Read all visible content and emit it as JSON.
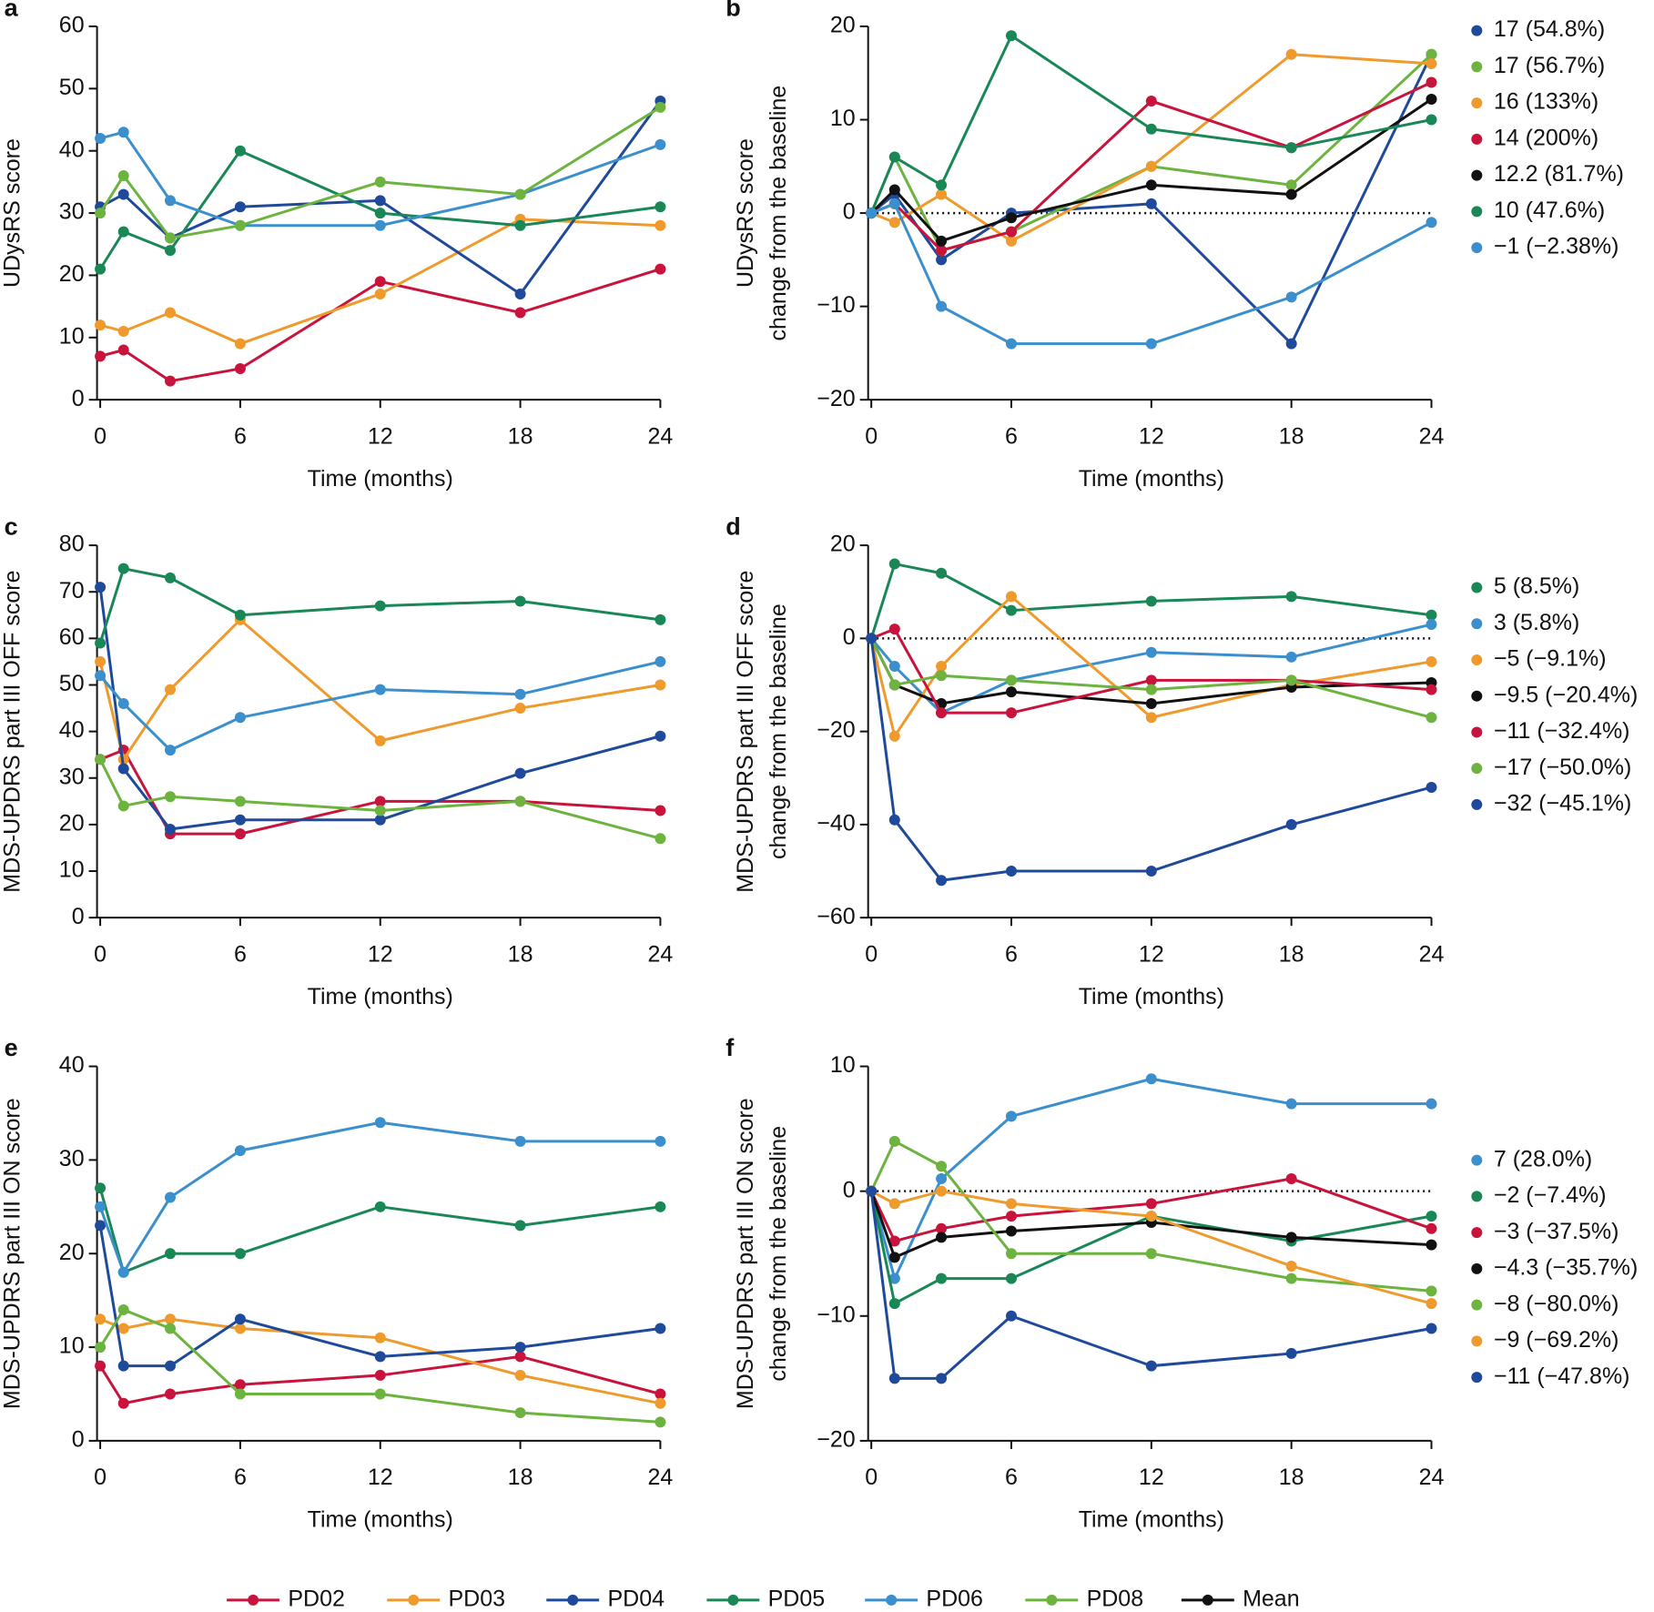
{
  "legend": [
    {
      "name": "PD02",
      "color": "#c8143c"
    },
    {
      "name": "PD03",
      "color": "#ef9a2d"
    },
    {
      "name": "PD04",
      "color": "#1f4a9b"
    },
    {
      "name": "PD05",
      "color": "#1a8757"
    },
    {
      "name": "PD06",
      "color": "#3b8fcc"
    },
    {
      "name": "PD08",
      "color": "#6db33f"
    },
    {
      "name": "Mean",
      "color": "#111111"
    }
  ],
  "chart_data": [
    {
      "type": "line",
      "panel": "a",
      "ylabel": [
        "UDysRS score"
      ],
      "xlabel": "Time (months)",
      "x": [
        0,
        1,
        3,
        6,
        12,
        18,
        24
      ],
      "xlim": [
        0,
        24
      ],
      "xticks": [
        0,
        6,
        12,
        18,
        24
      ],
      "ylim": [
        0,
        60
      ],
      "yticks": [
        0,
        10,
        20,
        30,
        40,
        50,
        60
      ],
      "series": [
        {
          "color": "#c8143c",
          "values": [
            7,
            8,
            3,
            5,
            19,
            14,
            21
          ]
        },
        {
          "color": "#ef9a2d",
          "values": [
            12,
            11,
            14,
            9,
            17,
            29,
            28
          ]
        },
        {
          "color": "#1f4a9b",
          "values": [
            31,
            33,
            26,
            31,
            32,
            17,
            48
          ]
        },
        {
          "color": "#1a8757",
          "values": [
            21,
            27,
            24,
            40,
            30,
            28,
            31
          ]
        },
        {
          "color": "#3b8fcc",
          "values": [
            42,
            43,
            32,
            28,
            28,
            33,
            41
          ]
        },
        {
          "color": "#6db33f",
          "values": [
            30,
            36,
            26,
            28,
            35,
            33,
            47
          ]
        }
      ]
    },
    {
      "type": "line",
      "panel": "b",
      "ylabel": [
        "UDysRS score",
        "change from the baseline"
      ],
      "xlabel": "Time (months)",
      "x": [
        0,
        1,
        3,
        6,
        12,
        18,
        24
      ],
      "xlim": [
        0,
        24
      ],
      "xticks": [
        0,
        6,
        12,
        18,
        24
      ],
      "ylim": [
        -20,
        20
      ],
      "yticks": [
        {
          "value": -20,
          "label": "−20"
        },
        {
          "value": -10,
          "label": "−10"
        },
        0,
        10,
        20
      ],
      "zero_line": 0,
      "series": [
        {
          "label": "17 (54.8%)",
          "color": "#1f4a9b",
          "values": [
            0,
            2,
            -5,
            0,
            1,
            -14,
            17
          ]
        },
        {
          "label": "17 (56.7%)",
          "color": "#6db33f",
          "values": [
            0,
            6,
            -4,
            -2,
            5,
            3,
            17
          ]
        },
        {
          "label": "16 (133%)",
          "color": "#ef9a2d",
          "values": [
            0,
            -1,
            2,
            -3,
            5,
            17,
            16
          ]
        },
        {
          "label": "14 (200%)",
          "color": "#c8143c",
          "values": [
            0,
            1,
            -4,
            -2,
            12,
            7,
            14
          ]
        },
        {
          "label": "12.2 (81.7%)",
          "color": "#111111",
          "values": [
            0,
            2.5,
            -3,
            -0.5,
            3,
            2,
            12.2
          ]
        },
        {
          "label": "10 (47.6%)",
          "color": "#1a8757",
          "values": [
            0,
            6,
            3,
            19,
            9,
            7,
            10
          ]
        },
        {
          "label": "−1 (−2.38%)",
          "color": "#3b8fcc",
          "values": [
            0,
            1,
            -10,
            -14,
            -14,
            -9,
            -1
          ]
        }
      ]
    },
    {
      "type": "line",
      "panel": "c",
      "ylabel": [
        "MDS-UPDRS part III OFF score"
      ],
      "xlabel": "Time (months)",
      "x": [
        0,
        1,
        3,
        6,
        12,
        18,
        24
      ],
      "xlim": [
        0,
        24
      ],
      "xticks": [
        0,
        6,
        12,
        18,
        24
      ],
      "ylim": [
        0,
        80
      ],
      "yticks": [
        0,
        10,
        20,
        30,
        40,
        50,
        60,
        70,
        80
      ],
      "series": [
        {
          "color": "#c8143c",
          "values": [
            34,
            36,
            18,
            18,
            25,
            25,
            23
          ]
        },
        {
          "color": "#ef9a2d",
          "values": [
            55,
            34,
            49,
            64,
            38,
            45,
            50
          ]
        },
        {
          "color": "#1f4a9b",
          "values": [
            71,
            32,
            19,
            21,
            21,
            31,
            39
          ]
        },
        {
          "color": "#1a8757",
          "values": [
            59,
            75,
            73,
            65,
            67,
            68,
            64
          ]
        },
        {
          "color": "#3b8fcc",
          "values": [
            52,
            46,
            36,
            43,
            49,
            48,
            55
          ]
        },
        {
          "color": "#6db33f",
          "values": [
            34,
            24,
            26,
            25,
            23,
            25,
            17
          ]
        }
      ]
    },
    {
      "type": "line",
      "panel": "d",
      "ylabel": [
        "MDS-UPDRS part III OFF score",
        "change from the baseline"
      ],
      "xlabel": "Time (months)",
      "x": [
        0,
        1,
        3,
        6,
        12,
        18,
        24
      ],
      "xlim": [
        0,
        24
      ],
      "xticks": [
        0,
        6,
        12,
        18,
        24
      ],
      "ylim": [
        -60,
        20
      ],
      "yticks": [
        {
          "value": -60,
          "label": "−60"
        },
        {
          "value": -40,
          "label": "−40"
        },
        {
          "value": -20,
          "label": "−20"
        },
        0,
        20
      ],
      "zero_line": 0,
      "series": [
        {
          "label": "5 (8.5%)",
          "color": "#1a8757",
          "values": [
            0,
            16,
            14,
            6,
            8,
            9,
            5
          ]
        },
        {
          "label": "3 (5.8%)",
          "color": "#3b8fcc",
          "values": [
            0,
            -6,
            -16,
            -9,
            -3,
            -4,
            3
          ]
        },
        {
          "label": "−5 (−9.1%)",
          "color": "#ef9a2d",
          "values": [
            0,
            -21,
            -6,
            9,
            -17,
            -10,
            -5
          ]
        },
        {
          "label": "−9.5 (−20.4%)",
          "color": "#111111",
          "values": [
            0,
            -10,
            -14,
            -11.5,
            -14,
            -10.5,
            -9.5
          ]
        },
        {
          "label": "−11 (−32.4%)",
          "color": "#c8143c",
          "values": [
            0,
            2,
            -16,
            -16,
            -9,
            -9,
            -11
          ]
        },
        {
          "label": "−17 (−50.0%)",
          "color": "#6db33f",
          "values": [
            0,
            -10,
            -8,
            -9,
            -11,
            -9,
            -17
          ]
        },
        {
          "label": "−32 (−45.1%)",
          "color": "#1f4a9b",
          "values": [
            0,
            -39,
            -52,
            -50,
            -50,
            -40,
            -32
          ]
        }
      ]
    },
    {
      "type": "line",
      "panel": "e",
      "ylabel": [
        "MDS-UPDRS part III ON score"
      ],
      "xlabel": "Time (months)",
      "x": [
        0,
        1,
        3,
        6,
        12,
        18,
        24
      ],
      "xlim": [
        0,
        24
      ],
      "xticks": [
        0,
        6,
        12,
        18,
        24
      ],
      "ylim": [
        0,
        40
      ],
      "yticks": [
        0,
        10,
        20,
        30,
        40
      ],
      "series": [
        {
          "color": "#c8143c",
          "values": [
            8,
            4,
            5,
            6,
            7,
            9,
            5
          ]
        },
        {
          "color": "#ef9a2d",
          "values": [
            13,
            12,
            13,
            12,
            11,
            7,
            4
          ]
        },
        {
          "color": "#1f4a9b",
          "values": [
            23,
            8,
            8,
            13,
            9,
            10,
            12
          ]
        },
        {
          "color": "#1a8757",
          "values": [
            27,
            18,
            20,
            20,
            25,
            23,
            25
          ]
        },
        {
          "color": "#3b8fcc",
          "values": [
            25,
            18,
            26,
            31,
            34,
            32,
            32
          ]
        },
        {
          "color": "#6db33f",
          "values": [
            10,
            14,
            12,
            5,
            5,
            3,
            2
          ]
        }
      ]
    },
    {
      "type": "line",
      "panel": "f",
      "ylabel": [
        "MDS-UPDRS part III ON score",
        "change from the baseline"
      ],
      "xlabel": "Time (months)",
      "x": [
        0,
        1,
        3,
        6,
        12,
        18,
        24
      ],
      "xlim": [
        0,
        24
      ],
      "xticks": [
        0,
        6,
        12,
        18,
        24
      ],
      "ylim": [
        -20,
        10
      ],
      "yticks": [
        {
          "value": -20,
          "label": "−20"
        },
        {
          "value": -10,
          "label": "−10"
        },
        0,
        10
      ],
      "zero_line": 0,
      "series": [
        {
          "label": "7 (28.0%)",
          "color": "#3b8fcc",
          "values": [
            0,
            -7,
            1,
            6,
            9,
            7,
            7
          ]
        },
        {
          "label": "−2 (−7.4%)",
          "color": "#1a8757",
          "values": [
            0,
            -9,
            -7,
            -7,
            -2,
            -4,
            -2
          ]
        },
        {
          "label": "−3 (−37.5%)",
          "color": "#c8143c",
          "values": [
            0,
            -4,
            -3,
            -2,
            -1,
            1,
            -3
          ]
        },
        {
          "label": "−4.3 (−35.7%)",
          "color": "#111111",
          "values": [
            0,
            -5.3,
            -3.7,
            -3.2,
            -2.5,
            -3.7,
            -4.3
          ]
        },
        {
          "label": "−8 (−80.0%)",
          "color": "#6db33f",
          "values": [
            0,
            4,
            2,
            -5,
            -5,
            -7,
            -8
          ]
        },
        {
          "label": "−9 (−69.2%)",
          "color": "#ef9a2d",
          "values": [
            0,
            -1,
            0,
            -1,
            -2,
            -6,
            -9
          ]
        },
        {
          "label": "−11 (−47.8%)",
          "color": "#1f4a9b",
          "values": [
            0,
            -15,
            -15,
            -10,
            -14,
            -13,
            -11
          ]
        }
      ]
    }
  ]
}
